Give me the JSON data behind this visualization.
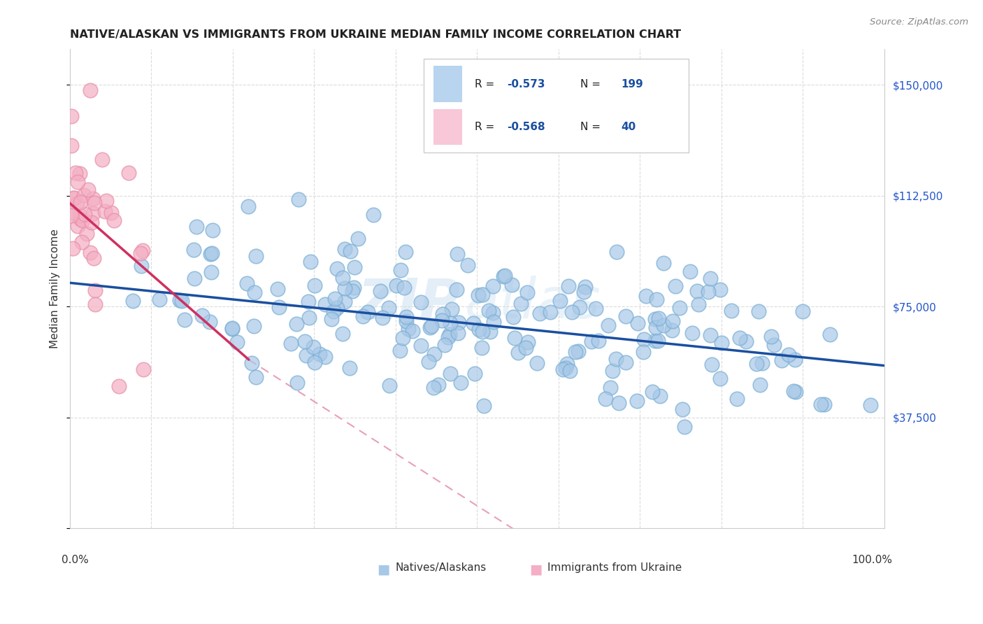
{
  "title": "NATIVE/ALASKAN VS IMMIGRANTS FROM UKRAINE MEDIAN FAMILY INCOME CORRELATION CHART",
  "source": "Source: ZipAtlas.com",
  "ylabel": "Median Family Income",
  "bottom_legend": [
    "Natives/Alaskans",
    "Immigrants from Ukraine"
  ],
  "blue_color": "#a8c8e8",
  "blue_edge_color": "#7aafd4",
  "pink_color": "#f4afc4",
  "pink_edge_color": "#e890a8",
  "blue_line_color": "#1a4fa0",
  "pink_line_color": "#d03060",
  "pink_dash_color": "#e8a0b8",
  "watermark_zip": "ZIP",
  "watermark_atlas": "atlas",
  "blue_r": "-0.573",
  "blue_n": "199",
  "pink_r": "-0.568",
  "pink_n": "40",
  "blue_trend": [
    0.0,
    83000,
    1.0,
    55000
  ],
  "pink_trend": [
    0.0,
    110000,
    0.22,
    57000
  ],
  "pink_dash": [
    0.22,
    57000,
    0.6,
    -10000
  ],
  "xlim": [
    0.0,
    1.0
  ],
  "ylim": [
    0,
    162000
  ],
  "yticks": [
    0,
    37500,
    75000,
    112500,
    150000
  ],
  "ytick_labels": [
    "",
    "$37,500",
    "$75,000",
    "$112,500",
    "$150,000"
  ],
  "xtick_positions": [
    0.0,
    0.1,
    0.2,
    0.3,
    0.4,
    0.5,
    0.6,
    0.7,
    0.8,
    0.9,
    1.0
  ],
  "legend_blue_color": "#b8d4ee",
  "legend_pink_color": "#f8c8d8",
  "legend_r_color": "#1a4fa0",
  "legend_n_color": "#1a4fa0"
}
